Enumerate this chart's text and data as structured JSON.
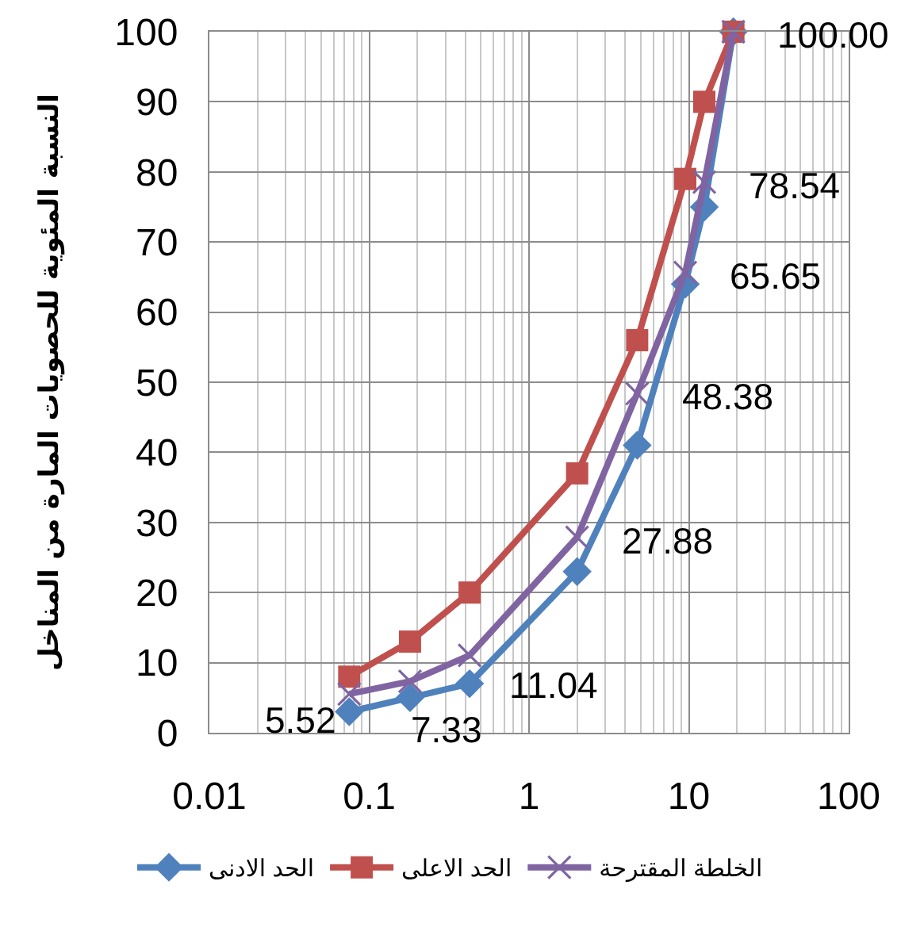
{
  "chart_data": {
    "type": "line",
    "ylabel": "النسبة المئوية للحصويات المارة من المناخل",
    "x": [
      0.075,
      0.18,
      0.425,
      2,
      4.75,
      9.5,
      12.5,
      19
    ],
    "log": "x",
    "xlim": [
      0.01,
      100
    ],
    "xticks": [
      0.01,
      0.1,
      1,
      10,
      100
    ],
    "ylim": [
      0,
      100
    ],
    "yticks": [
      0,
      10,
      20,
      30,
      40,
      50,
      60,
      70,
      80,
      90,
      100
    ],
    "grid": true,
    "legend": "bottom",
    "series": [
      {
        "name": "الحد الادنى",
        "color": "#4f81bd",
        "marker": "diamond",
        "values": [
          3,
          5,
          7,
          23,
          41,
          64,
          75,
          100
        ]
      },
      {
        "name": "الحد الاعلى",
        "color": "#c0504d",
        "marker": "square",
        "values": [
          8,
          13,
          20,
          37,
          56,
          79,
          90,
          100
        ]
      },
      {
        "name": "الخلطة المقترحة",
        "color": "#8064a2",
        "marker": "cross",
        "values": [
          5.52,
          7.33,
          11.04,
          27.88,
          48.38,
          65.65,
          78.54,
          100.0
        ],
        "value_labels": [
          "5.52",
          "7.33",
          "11.04",
          "27.88",
          "48.38",
          "65.65",
          "78.54",
          "100.00"
        ]
      }
    ]
  }
}
